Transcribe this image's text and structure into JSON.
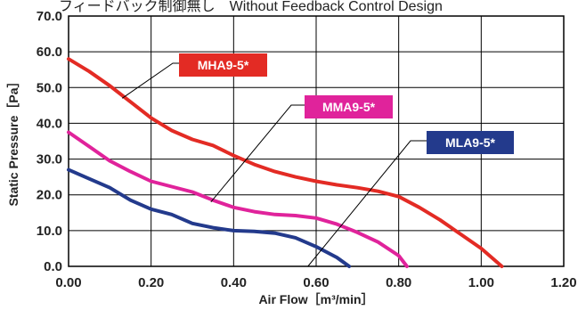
{
  "chart_data": {
    "type": "line",
    "title": "フィードバック制御無し　Without Feedback Control Design",
    "xlabel": "Air Flow［m³/min］",
    "ylabel": "Static Pressure［Pa］",
    "xlim": [
      0,
      1.2
    ],
    "ylim": [
      0,
      70
    ],
    "x_ticks": [
      "0.00",
      "0.20",
      "0.40",
      "0.60",
      "0.80",
      "1.00",
      "1.20"
    ],
    "y_ticks": [
      "0.0",
      "10.0",
      "20.0",
      "30.0",
      "40.0",
      "50.0",
      "60.0",
      "70.0"
    ],
    "grid": true,
    "series": [
      {
        "name": "MHA9-5*",
        "color": "#e32b24",
        "points": [
          [
            0.0,
            58.0
          ],
          [
            0.05,
            54.5
          ],
          [
            0.1,
            50.5
          ],
          [
            0.15,
            46.0
          ],
          [
            0.2,
            41.5
          ],
          [
            0.25,
            38.0
          ],
          [
            0.3,
            35.5
          ],
          [
            0.35,
            33.8
          ],
          [
            0.4,
            31.0
          ],
          [
            0.45,
            28.5
          ],
          [
            0.5,
            26.5
          ],
          [
            0.55,
            25.0
          ],
          [
            0.6,
            23.8
          ],
          [
            0.65,
            22.8
          ],
          [
            0.7,
            22.0
          ],
          [
            0.75,
            21.0
          ],
          [
            0.8,
            19.5
          ],
          [
            0.85,
            16.5
          ],
          [
            0.9,
            13.0
          ],
          [
            0.95,
            9.0
          ],
          [
            1.0,
            5.0
          ],
          [
            1.05,
            0.0
          ]
        ]
      },
      {
        "name": "MMA9-5*",
        "color": "#e0239b",
        "points": [
          [
            0.0,
            37.5
          ],
          [
            0.05,
            33.5
          ],
          [
            0.1,
            29.5
          ],
          [
            0.15,
            26.5
          ],
          [
            0.2,
            23.8
          ],
          [
            0.25,
            22.3
          ],
          [
            0.3,
            20.8
          ],
          [
            0.35,
            18.5
          ],
          [
            0.4,
            16.5
          ],
          [
            0.45,
            15.3
          ],
          [
            0.5,
            14.5
          ],
          [
            0.55,
            14.2
          ],
          [
            0.6,
            13.5
          ],
          [
            0.65,
            11.8
          ],
          [
            0.7,
            9.5
          ],
          [
            0.75,
            6.8
          ],
          [
            0.8,
            3.0
          ],
          [
            0.82,
            0.0
          ]
        ]
      },
      {
        "name": "MLA9-5*",
        "color": "#233a8c",
        "points": [
          [
            0.0,
            27.0
          ],
          [
            0.05,
            24.5
          ],
          [
            0.1,
            22.0
          ],
          [
            0.15,
            18.5
          ],
          [
            0.2,
            16.0
          ],
          [
            0.25,
            14.5
          ],
          [
            0.3,
            12.0
          ],
          [
            0.35,
            10.8
          ],
          [
            0.4,
            10.0
          ],
          [
            0.45,
            9.8
          ],
          [
            0.5,
            9.3
          ],
          [
            0.55,
            8.0
          ],
          [
            0.6,
            5.5
          ],
          [
            0.65,
            2.5
          ],
          [
            0.68,
            0.0
          ]
        ]
      }
    ]
  }
}
